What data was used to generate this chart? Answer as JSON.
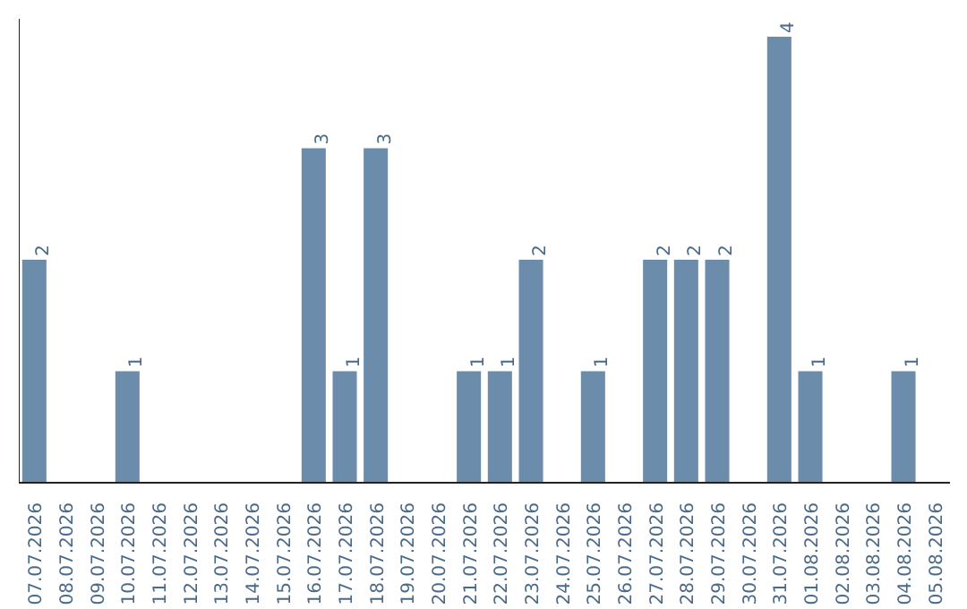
{
  "chart_data": {
    "type": "bar",
    "categories": [
      "07.07.2026",
      "08.07.2026",
      "09.07.2026",
      "10.07.2026",
      "11.07.2026",
      "12.07.2026",
      "13.07.2026",
      "14.07.2026",
      "15.07.2026",
      "16.07.2026",
      "17.07.2026",
      "18.07.2026",
      "19.07.2026",
      "20.07.2026",
      "21.07.2026",
      "22.07.2026",
      "23.07.2026",
      "24.07.2026",
      "25.07.2026",
      "26.07.2026",
      "27.07.2026",
      "28.07.2026",
      "29.07.2026",
      "30.07.2026",
      "31.07.2026",
      "01.08.2026",
      "02.08.2026",
      "03.08.2026",
      "04.08.2026",
      "05.08.2026"
    ],
    "values": [
      2,
      0,
      0,
      1,
      0,
      0,
      0,
      0,
      0,
      3,
      1,
      3,
      0,
      0,
      1,
      1,
      2,
      0,
      1,
      0,
      2,
      2,
      2,
      0,
      4,
      1,
      0,
      0,
      1,
      0
    ],
    "value_labels": [
      "2",
      null,
      null,
      "1",
      null,
      null,
      null,
      null,
      null,
      "3",
      "1",
      "3",
      null,
      null,
      "1",
      "1",
      "2",
      null,
      "1",
      null,
      "2",
      "2",
      "2",
      null,
      "4",
      "1",
      null,
      null,
      "1",
      null
    ],
    "color": "#6b8cab",
    "grid": false,
    "tick_labels": "x"
  }
}
